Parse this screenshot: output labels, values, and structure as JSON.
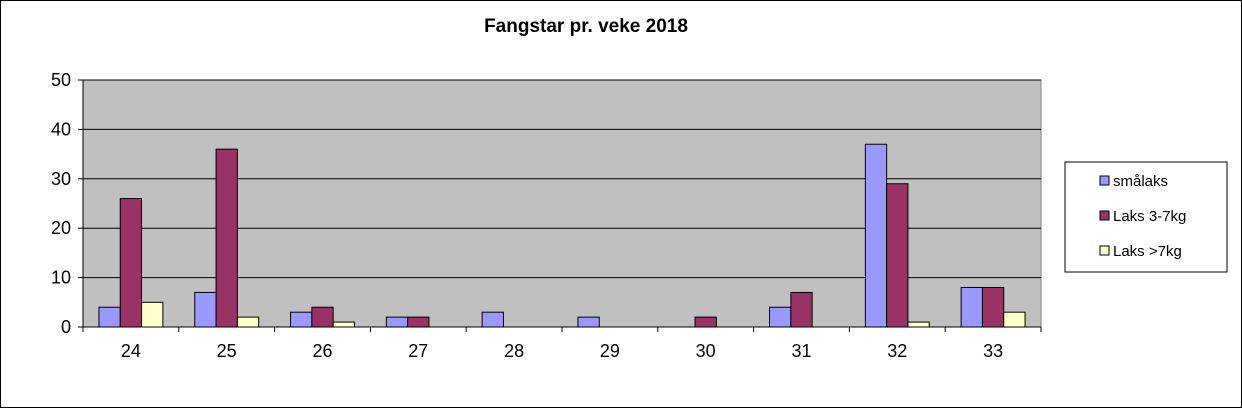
{
  "chart_data": {
    "type": "bar",
    "title": "Fangstar  pr.  veke 2018",
    "categories": [
      "24",
      "25",
      "26",
      "27",
      "28",
      "29",
      "30",
      "31",
      "32",
      "33"
    ],
    "ylim": [
      0,
      50
    ],
    "yticks": [
      "0",
      "10",
      "20",
      "30",
      "40",
      "50"
    ],
    "grid": true,
    "legend_position": "right",
    "plot_background": "#c0c0c0",
    "series": [
      {
        "name": "smålaks",
        "color": "#9999ff",
        "values": [
          4,
          7,
          3,
          2,
          3,
          2,
          0,
          4,
          37,
          8
        ]
      },
      {
        "name": "Laks 3-7kg",
        "color": "#993366",
        "values": [
          26,
          36,
          4,
          2,
          0,
          0,
          2,
          7,
          29,
          8
        ]
      },
      {
        "name": "Laks >7kg",
        "color": "#ffffcc",
        "values": [
          5,
          2,
          1,
          0,
          0,
          0,
          0,
          0,
          1,
          3
        ]
      }
    ]
  }
}
